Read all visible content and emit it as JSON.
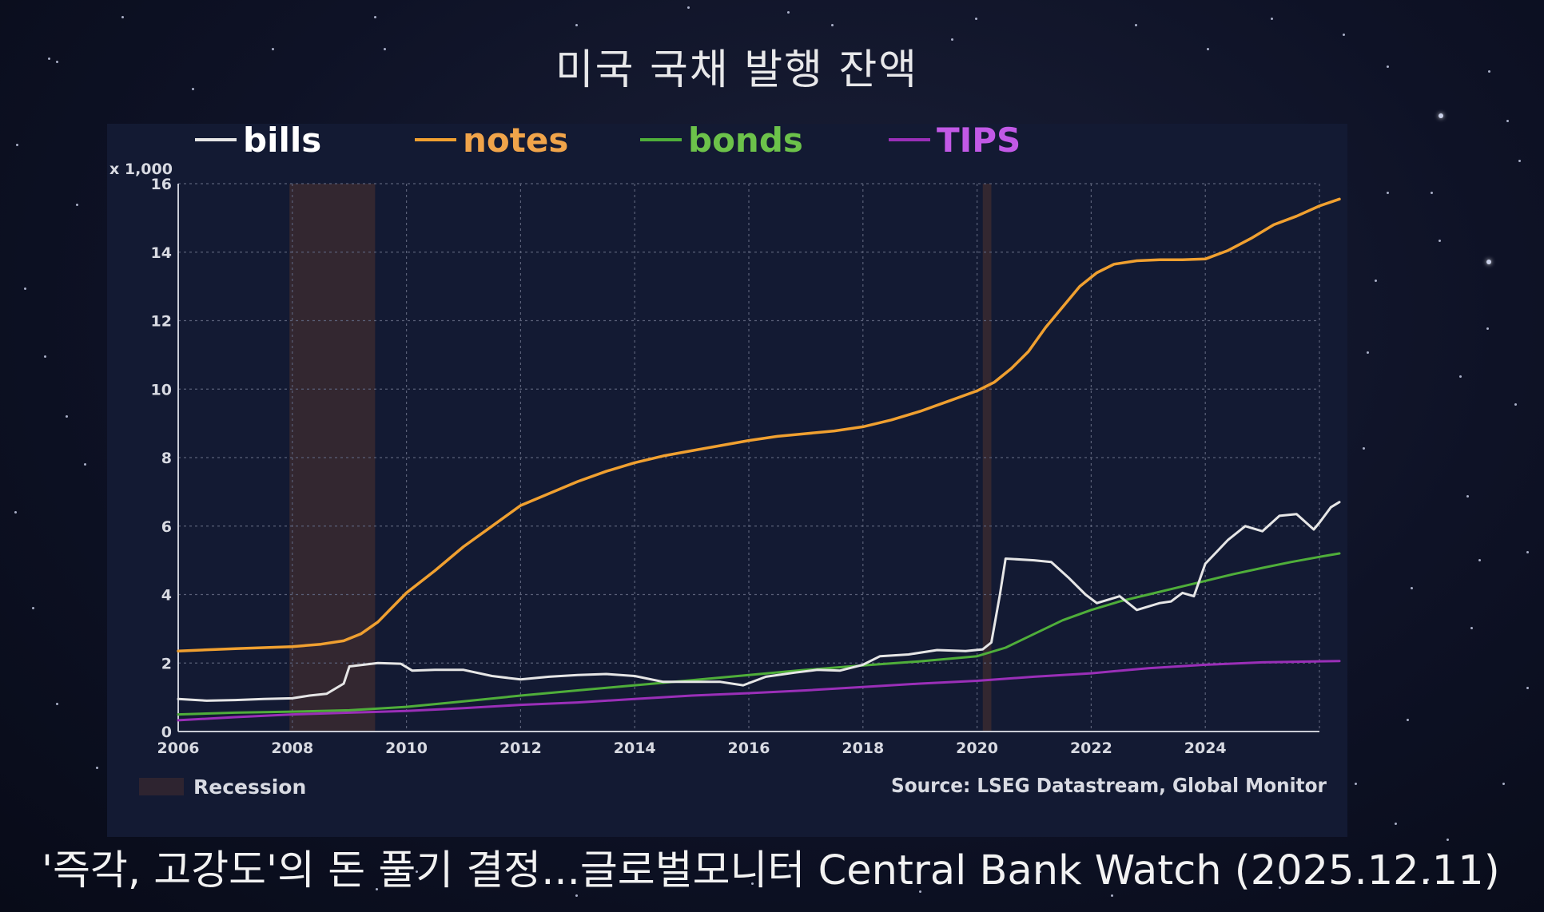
{
  "page_title": "미국 국채 발행 잔액",
  "caption": "'즉각, 고강도'의 돈 풀기 결정...글로벌모니터 Central Bank Watch (2025.12.11)",
  "chart_data": {
    "type": "line",
    "x_tick_labels": [
      "2006",
      "2008",
      "2010",
      "2012",
      "2014",
      "2016",
      "2018",
      "2020",
      "2022",
      "2024"
    ],
    "y_tick_labels": [
      "0",
      "2",
      "4",
      "6",
      "8",
      "10",
      "12",
      "14",
      "16"
    ],
    "y_unit_label": "x 1,000",
    "xlim": [
      2006,
      2026
    ],
    "ylim": [
      0,
      16
    ],
    "grid": true,
    "legend_position": "top",
    "recession_label": "Recession",
    "recession_periods": [
      [
        2007.95,
        2009.45
      ],
      [
        2020.1,
        2020.25
      ]
    ],
    "source": "Source: LSEG Datastream, Global Monitor",
    "series": [
      {
        "name": "bills",
        "color": "#e6e6e6",
        "points": [
          [
            2006,
            0.95
          ],
          [
            2006.5,
            0.9
          ],
          [
            2007,
            0.92
          ],
          [
            2007.5,
            0.95
          ],
          [
            2008,
            0.97
          ],
          [
            2008.3,
            1.05
          ],
          [
            2008.6,
            1.1
          ],
          [
            2008.9,
            1.4
          ],
          [
            2009.0,
            1.9
          ],
          [
            2009.5,
            2.0
          ],
          [
            2009.9,
            1.98
          ],
          [
            2010.1,
            1.78
          ],
          [
            2010.5,
            1.8
          ],
          [
            2011,
            1.8
          ],
          [
            2011.5,
            1.62
          ],
          [
            2012,
            1.52
          ],
          [
            2012.5,
            1.6
          ],
          [
            2013,
            1.65
          ],
          [
            2013.5,
            1.68
          ],
          [
            2014,
            1.62
          ],
          [
            2014.5,
            1.45
          ],
          [
            2015,
            1.45
          ],
          [
            2015.5,
            1.45
          ],
          [
            2015.9,
            1.35
          ],
          [
            2016.3,
            1.6
          ],
          [
            2016.8,
            1.72
          ],
          [
            2017.2,
            1.8
          ],
          [
            2017.6,
            1.78
          ],
          [
            2018,
            1.95
          ],
          [
            2018.3,
            2.2
          ],
          [
            2018.8,
            2.25
          ],
          [
            2019.3,
            2.38
          ],
          [
            2019.8,
            2.35
          ],
          [
            2020.1,
            2.4
          ],
          [
            2020.25,
            2.6
          ],
          [
            2020.4,
            4.0
          ],
          [
            2020.5,
            5.05
          ],
          [
            2021,
            5.0
          ],
          [
            2021.3,
            4.95
          ],
          [
            2021.6,
            4.5
          ],
          [
            2021.9,
            4.0
          ],
          [
            2022.1,
            3.75
          ],
          [
            2022.5,
            3.95
          ],
          [
            2022.8,
            3.55
          ],
          [
            2023.2,
            3.75
          ],
          [
            2023.4,
            3.8
          ],
          [
            2023.6,
            4.05
          ],
          [
            2023.8,
            3.95
          ],
          [
            2024,
            4.9
          ],
          [
            2024.4,
            5.6
          ],
          [
            2024.7,
            6.0
          ],
          [
            2025,
            5.85
          ],
          [
            2025.3,
            6.3
          ],
          [
            2025.6,
            6.35
          ],
          [
            2025.9,
            5.9
          ],
          [
            2026,
            6.1
          ],
          [
            2026.2,
            6.55
          ],
          [
            2026.35,
            6.7
          ]
        ]
      },
      {
        "name": "notes",
        "color": "#f0a030",
        "points": [
          [
            2006,
            2.35
          ],
          [
            2007,
            2.42
          ],
          [
            2008,
            2.48
          ],
          [
            2008.5,
            2.55
          ],
          [
            2008.9,
            2.65
          ],
          [
            2009.2,
            2.85
          ],
          [
            2009.5,
            3.2
          ],
          [
            2010,
            4.05
          ],
          [
            2010.5,
            4.7
          ],
          [
            2011,
            5.4
          ],
          [
            2011.5,
            6.0
          ],
          [
            2012,
            6.6
          ],
          [
            2012.5,
            6.95
          ],
          [
            2013,
            7.3
          ],
          [
            2013.5,
            7.6
          ],
          [
            2014,
            7.85
          ],
          [
            2014.5,
            8.05
          ],
          [
            2015,
            8.2
          ],
          [
            2015.5,
            8.35
          ],
          [
            2016,
            8.5
          ],
          [
            2016.5,
            8.62
          ],
          [
            2017,
            8.7
          ],
          [
            2017.5,
            8.78
          ],
          [
            2018,
            8.9
          ],
          [
            2018.5,
            9.1
          ],
          [
            2019,
            9.35
          ],
          [
            2019.5,
            9.65
          ],
          [
            2020,
            9.95
          ],
          [
            2020.3,
            10.2
          ],
          [
            2020.6,
            10.6
          ],
          [
            2020.9,
            11.1
          ],
          [
            2021.2,
            11.8
          ],
          [
            2021.5,
            12.4
          ],
          [
            2021.8,
            13.0
          ],
          [
            2022.1,
            13.4
          ],
          [
            2022.4,
            13.65
          ],
          [
            2022.8,
            13.75
          ],
          [
            2023.2,
            13.78
          ],
          [
            2023.6,
            13.78
          ],
          [
            2024,
            13.8
          ],
          [
            2024.4,
            14.05
          ],
          [
            2024.8,
            14.4
          ],
          [
            2025.2,
            14.8
          ],
          [
            2025.6,
            15.05
          ],
          [
            2026,
            15.35
          ],
          [
            2026.35,
            15.55
          ]
        ]
      },
      {
        "name": "bonds",
        "color": "#4fae3a",
        "points": [
          [
            2006,
            0.5
          ],
          [
            2007,
            0.55
          ],
          [
            2008,
            0.58
          ],
          [
            2009,
            0.62
          ],
          [
            2010,
            0.72
          ],
          [
            2011,
            0.88
          ],
          [
            2012,
            1.05
          ],
          [
            2013,
            1.2
          ],
          [
            2014,
            1.35
          ],
          [
            2015,
            1.5
          ],
          [
            2016,
            1.65
          ],
          [
            2017,
            1.8
          ],
          [
            2018,
            1.93
          ],
          [
            2019,
            2.05
          ],
          [
            2020,
            2.2
          ],
          [
            2020.5,
            2.45
          ],
          [
            2021,
            2.85
          ],
          [
            2021.5,
            3.25
          ],
          [
            2022,
            3.55
          ],
          [
            2022.5,
            3.8
          ],
          [
            2023,
            4.0
          ],
          [
            2023.5,
            4.2
          ],
          [
            2024,
            4.4
          ],
          [
            2024.5,
            4.6
          ],
          [
            2025,
            4.78
          ],
          [
            2025.5,
            4.95
          ],
          [
            2026,
            5.1
          ],
          [
            2026.35,
            5.2
          ]
        ]
      },
      {
        "name": "TIPS",
        "color": "#9a2fb8",
        "points": [
          [
            2006,
            0.33
          ],
          [
            2007,
            0.42
          ],
          [
            2008,
            0.5
          ],
          [
            2009,
            0.55
          ],
          [
            2010,
            0.6
          ],
          [
            2011,
            0.68
          ],
          [
            2012,
            0.78
          ],
          [
            2013,
            0.85
          ],
          [
            2014,
            0.95
          ],
          [
            2015,
            1.05
          ],
          [
            2016,
            1.12
          ],
          [
            2017,
            1.2
          ],
          [
            2018,
            1.3
          ],
          [
            2019,
            1.4
          ],
          [
            2020,
            1.48
          ],
          [
            2021,
            1.6
          ],
          [
            2022,
            1.7
          ],
          [
            2023,
            1.85
          ],
          [
            2024,
            1.95
          ],
          [
            2025,
            2.02
          ],
          [
            2026,
            2.05
          ],
          [
            2026.35,
            2.06
          ]
        ]
      }
    ]
  }
}
